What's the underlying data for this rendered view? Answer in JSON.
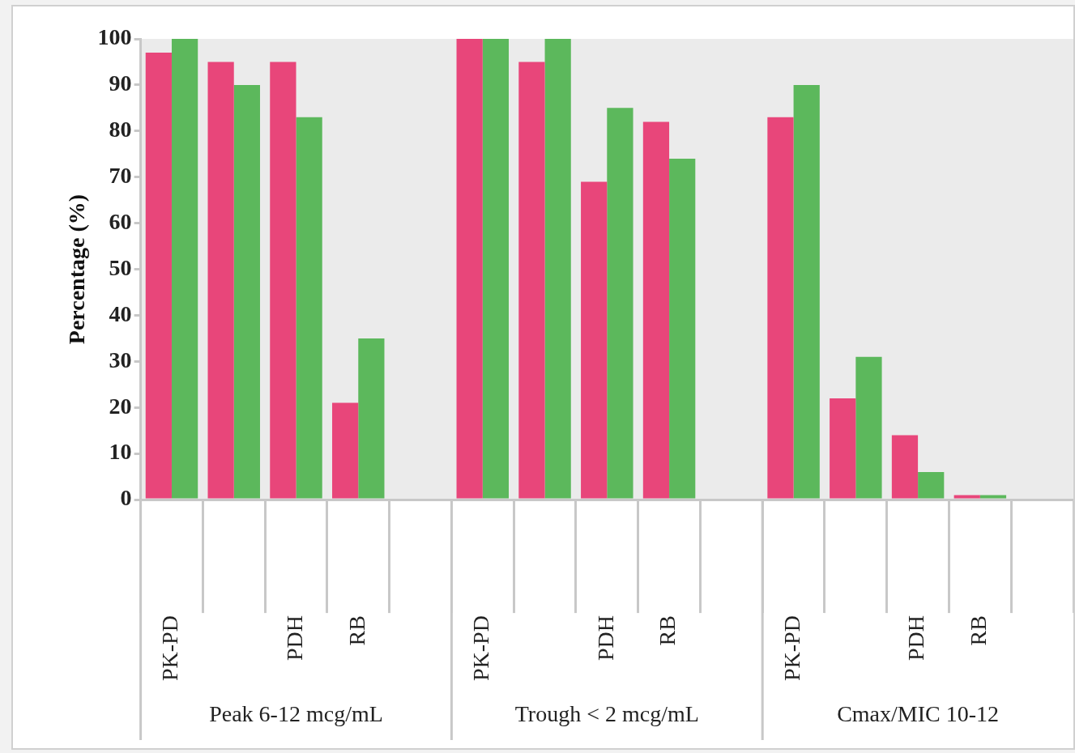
{
  "chart_data": {
    "type": "bar",
    "ylabel": "Percentage (%)",
    "categories": [
      "PK-PD",
      null,
      "PDH",
      "RB",
      null,
      "PK-PD",
      null,
      "PDH",
      "RB",
      null,
      "PK-PD",
      null,
      "PDH",
      "RB",
      null
    ],
    "series": [
      {
        "color": "#e8467a",
        "values": [
          97,
          95,
          95,
          21,
          null,
          100,
          95,
          69,
          82,
          null,
          83,
          22,
          14,
          1,
          null
        ]
      },
      {
        "color": "#5cb85c",
        "values": [
          100,
          90,
          83,
          35,
          null,
          100,
          100,
          85,
          74,
          null,
          90,
          31,
          6,
          1,
          null
        ]
      }
    ],
    "annotations": [
      "Peak 6-12 mcg/mL",
      "Trough < 2 mcg/mL",
      "Cmax/MIC 10-12"
    ],
    "ylim": [
      0,
      100
    ],
    "yticks": [
      0,
      10,
      20,
      30,
      40,
      50,
      60,
      70,
      80,
      90,
      100
    ],
    "grid": false,
    "legend": false
  }
}
